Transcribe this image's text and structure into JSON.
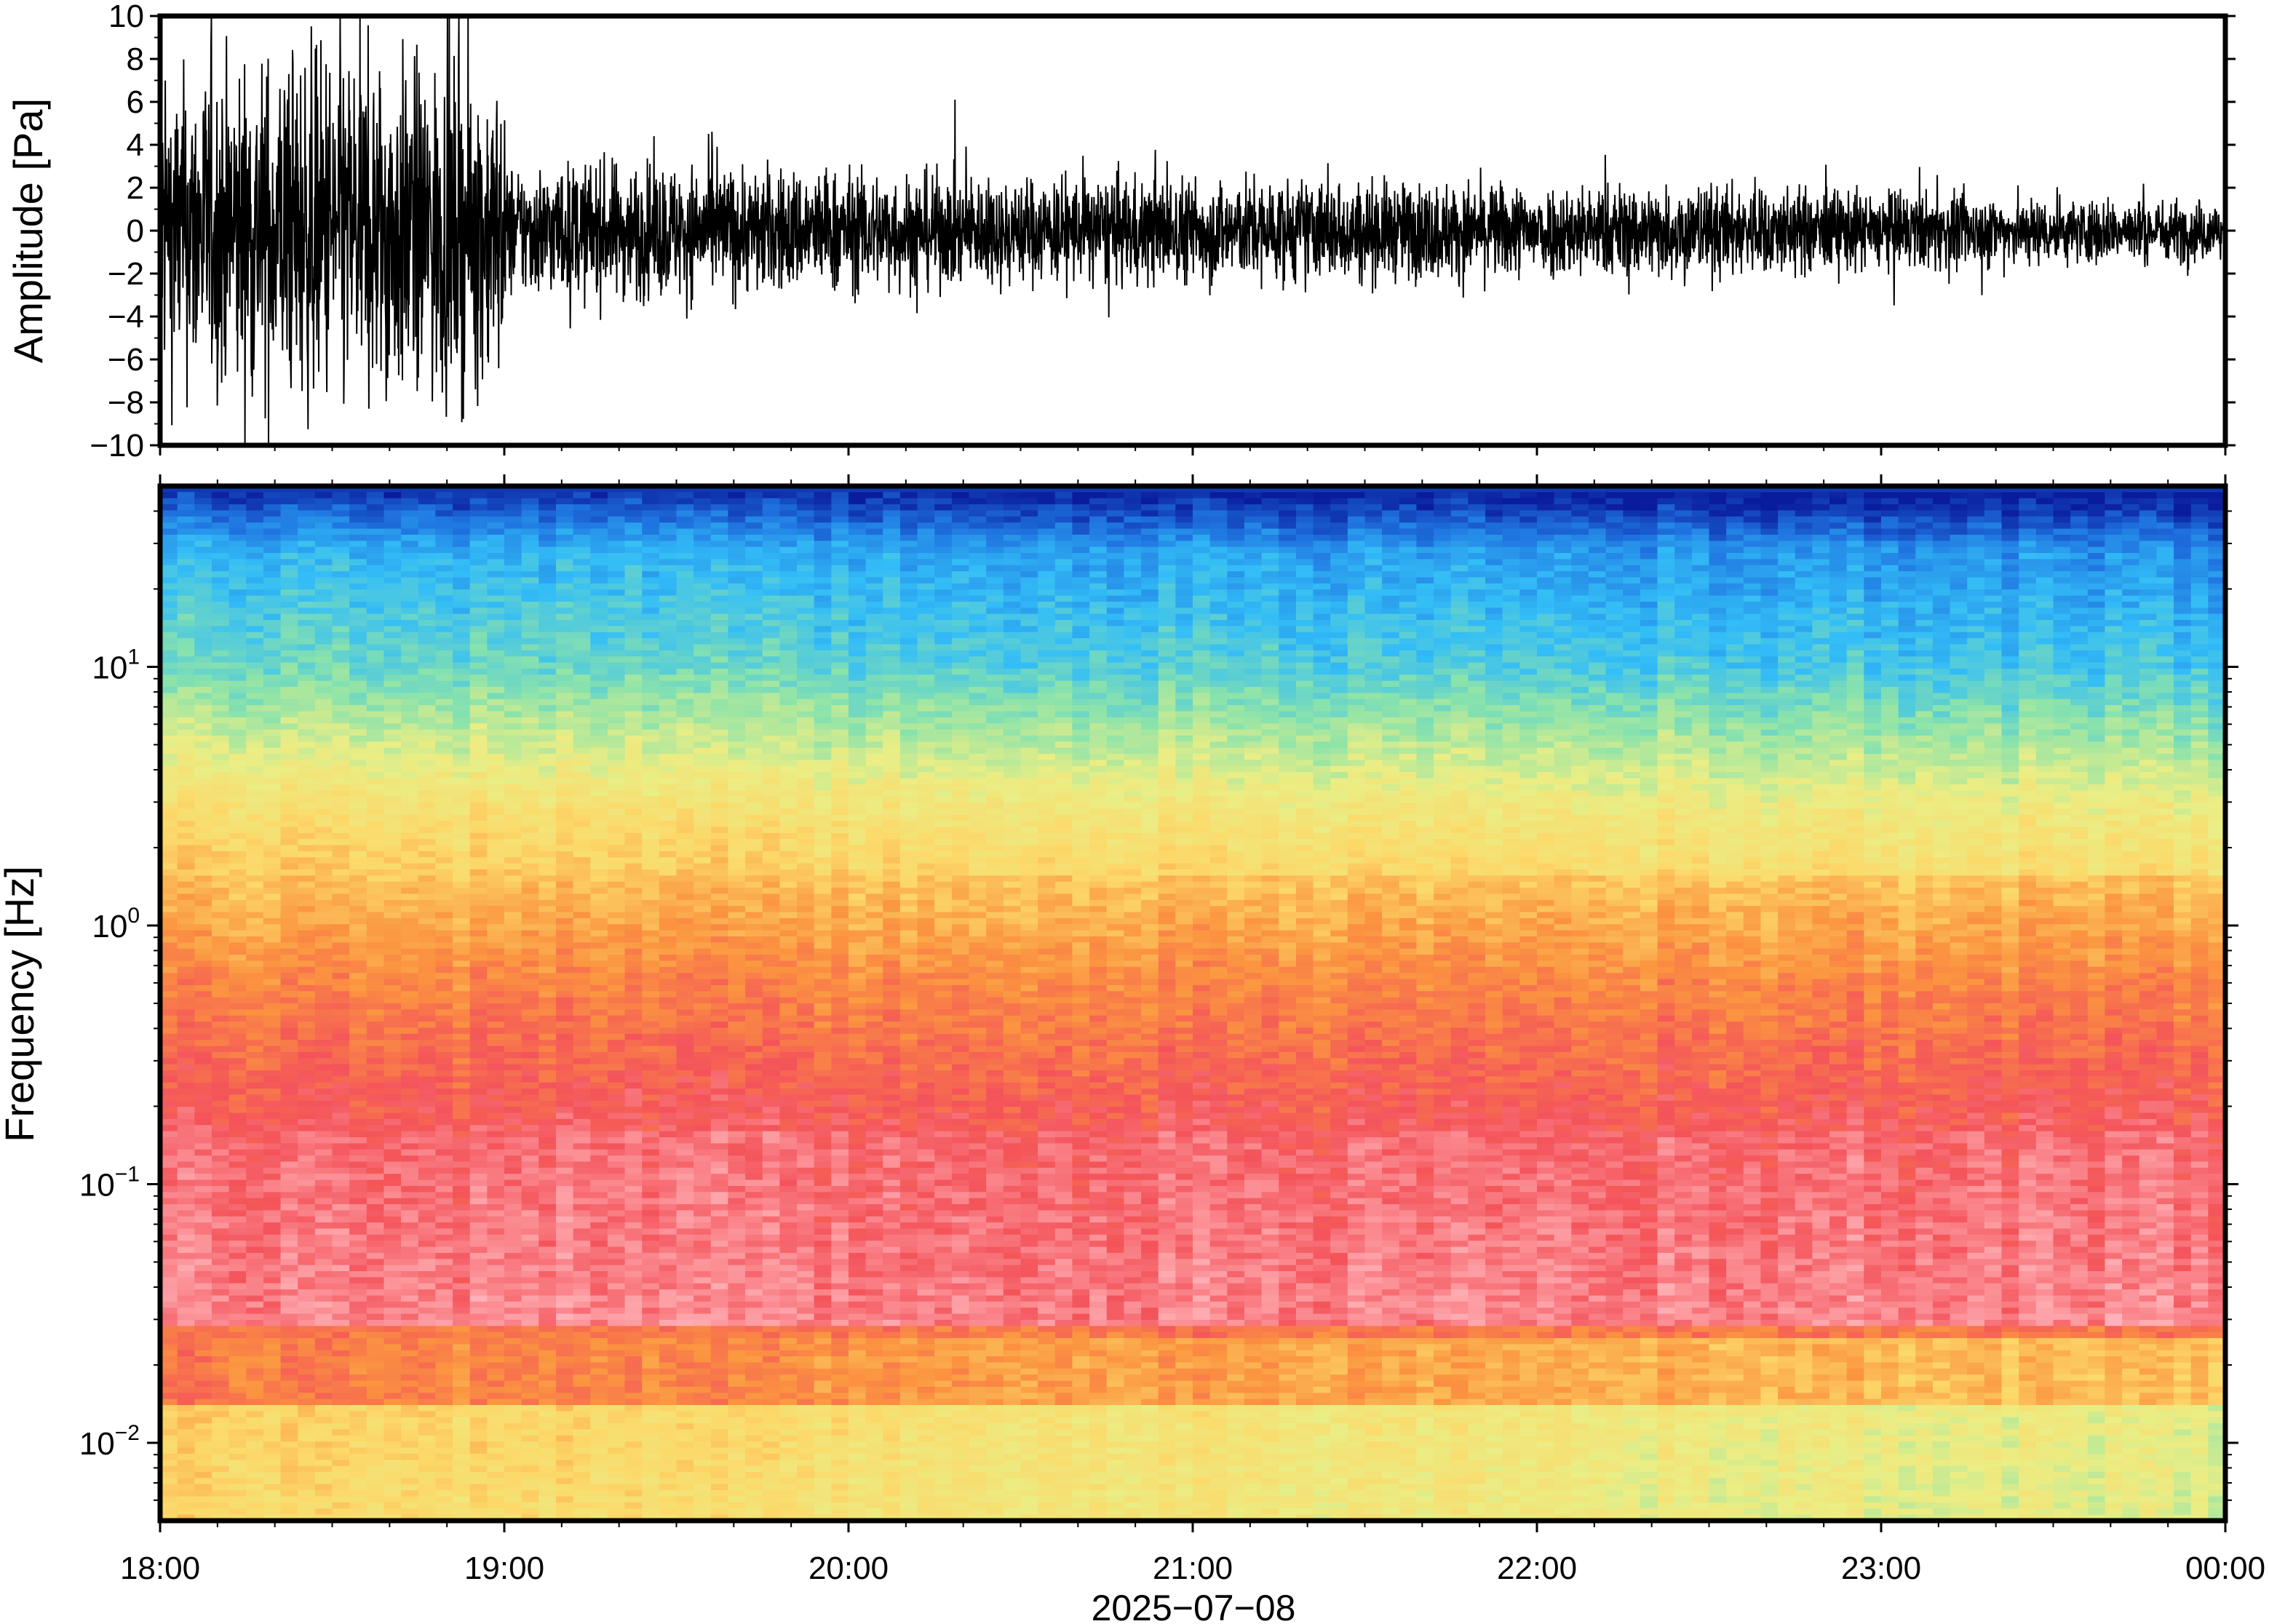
{
  "chart_data": [
    {
      "type": "line",
      "panel": "waveform",
      "ylabel": "Amplitude [Pa]",
      "ylim": [
        -10,
        10
      ],
      "yticks": [
        -10,
        -8,
        -6,
        -4,
        -2,
        0,
        2,
        4,
        6,
        8,
        10
      ],
      "ytick_labels": [
        "−10",
        "−8",
        "−6",
        "−4",
        "−2",
        "0",
        "2",
        "4",
        "6",
        "8",
        "10"
      ],
      "xlim": [
        "18:00",
        "00:00"
      ],
      "envelope_hours": [
        0,
        0.25,
        0.5,
        0.75,
        0.99,
        1.01,
        1.5,
        2,
        2.5,
        3,
        3.5,
        4,
        4.5,
        5,
        5.5,
        6
      ],
      "envelope_pa": [
        4.5,
        5.0,
        5.5,
        5.0,
        4.5,
        2.0,
        2.0,
        1.8,
        1.6,
        1.6,
        1.5,
        1.4,
        1.4,
        1.2,
        1.0,
        0.9
      ],
      "color": "#000000",
      "grid": false,
      "legend": "none"
    },
    {
      "type": "heatmap",
      "panel": "spectrogram",
      "ylabel": "Frequency [Hz]",
      "yscale": "log",
      "ylim": [
        0.005,
        50
      ],
      "yticks": [
        0.01,
        0.1,
        1,
        10
      ],
      "ytick_mantissa": [
        "10",
        "10",
        "10",
        "10"
      ],
      "ytick_exponents": [
        "−2",
        "−1",
        "0",
        "1"
      ],
      "xlabel": "2025−07−08",
      "xlim": [
        "18:00",
        "00:00"
      ],
      "xticks": [
        "18:00",
        "19:00",
        "20:00",
        "21:00",
        "22:00",
        "23:00",
        "00:00"
      ],
      "colormap": [
        "#ffb3b8",
        "#f4535a",
        "#fb9440",
        "#fcd869",
        "#eaee85",
        "#8ae3ab",
        "#33bdf7",
        "#1f74e0",
        "#0a1c9e"
      ],
      "grid": false,
      "legend": "none"
    }
  ]
}
